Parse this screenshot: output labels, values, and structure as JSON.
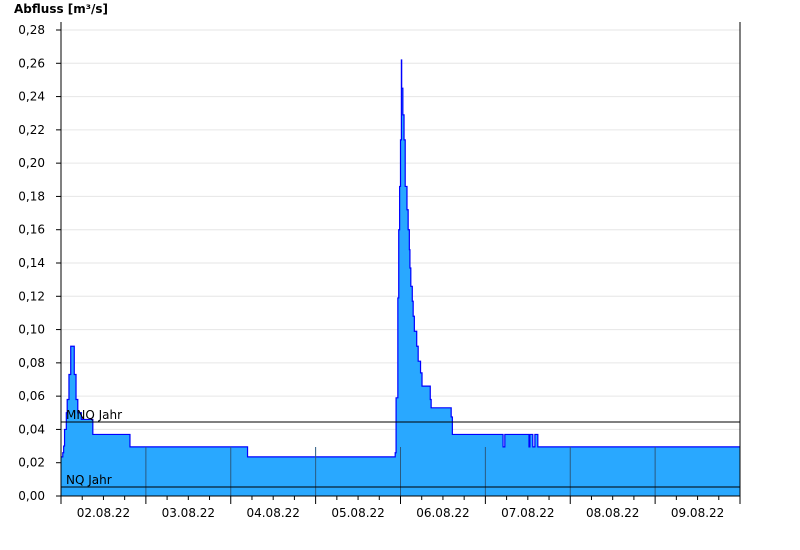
{
  "chart_data": {
    "type": "area",
    "ylabel": "Abfluss [m³/s]",
    "ylim": [
      0,
      0.28
    ],
    "yticks": [
      "0,00",
      "0,02",
      "0,04",
      "0,06",
      "0,08",
      "0,10",
      "0,12",
      "0,14",
      "0,16",
      "0,18",
      "0,20",
      "0,22",
      "0,24",
      "0,26",
      "0,28"
    ],
    "xlim": [
      "02.08.22 00:00",
      "10.08.22 00:00"
    ],
    "xtick_labels": [
      "02.08.22",
      "03.08.22",
      "04.08.22",
      "05.08.22",
      "06.08.22",
      "07.08.22",
      "08.08.22",
      "09.08.22"
    ],
    "grid": true,
    "colors": {
      "fill": "#29a8ff",
      "line": "#0000ff",
      "grid": "#e6e6e6",
      "day_line": "#2a5a80"
    },
    "series": [
      {
        "step": true,
        "points": [
          [
            "02.08.22 00:00",
            0.0235
          ],
          [
            "02.08.22 00:30",
            0.026
          ],
          [
            "02.08.22 00:45",
            0.03
          ],
          [
            "02.08.22 01:00",
            0.04
          ],
          [
            "02.08.22 01:30",
            0.05
          ],
          [
            "02.08.22 01:45",
            0.058
          ],
          [
            "02.08.22 02:15",
            0.073
          ],
          [
            "02.08.22 02:45",
            0.09
          ],
          [
            "02.08.22 03:45",
            0.073
          ],
          [
            "02.08.22 04:15",
            0.058
          ],
          [
            "02.08.22 04:45",
            0.05
          ],
          [
            "02.08.22 05:45",
            0.046
          ],
          [
            "02.08.22 09:00",
            0.037
          ],
          [
            "02.08.22 19:30",
            0.0295
          ],
          [
            "04.08.22 04:45",
            0.0235
          ],
          [
            "05.08.22 22:30",
            0.026
          ],
          [
            "05.08.22 22:45",
            0.059
          ],
          [
            "05.08.22 23:15",
            0.119
          ],
          [
            "05.08.22 23:30",
            0.16
          ],
          [
            "05.08.22 23:45",
            0.186
          ],
          [
            "06.08.22 00:00",
            0.214
          ],
          [
            "06.08.22 00:15",
            0.262
          ],
          [
            "06.08.22 00:20",
            0.245
          ],
          [
            "06.08.22 00:40",
            0.229
          ],
          [
            "06.08.22 01:00",
            0.214
          ],
          [
            "06.08.22 01:20",
            0.186
          ],
          [
            "06.08.22 01:50",
            0.172
          ],
          [
            "06.08.22 02:10",
            0.16
          ],
          [
            "06.08.22 02:30",
            0.148
          ],
          [
            "06.08.22 02:40",
            0.137
          ],
          [
            "06.08.22 02:55",
            0.126
          ],
          [
            "06.08.22 03:20",
            0.117
          ],
          [
            "06.08.22 03:35",
            0.108
          ],
          [
            "06.08.22 03:55",
            0.099
          ],
          [
            "06.08.22 04:35",
            0.09
          ],
          [
            "06.08.22 05:00",
            0.081
          ],
          [
            "06.08.22 05:40",
            0.074
          ],
          [
            "06.08.22 06:05",
            0.066
          ],
          [
            "06.08.22 08:25",
            0.058
          ],
          [
            "06.08.22 08:40",
            0.053
          ],
          [
            "06.08.22 14:20",
            0.0475
          ],
          [
            "06.08.22 14:40",
            0.037
          ],
          [
            "07.08.22 05:00",
            0.0295
          ],
          [
            "07.08.22 05:30",
            0.037
          ],
          [
            "07.08.22 12:20",
            0.0295
          ],
          [
            "07.08.22 12:35",
            0.037
          ],
          [
            "07.08.22 13:25",
            0.0295
          ],
          [
            "07.08.22 14:00",
            0.037
          ],
          [
            "07.08.22 14:50",
            0.0295
          ],
          [
            "10.08.22 00:00",
            0.0295
          ]
        ]
      }
    ],
    "reference_lines": [
      {
        "label": "MNQ Jahr",
        "value": 0.0445
      },
      {
        "label": "NQ Jahr",
        "value": 0.0054
      }
    ]
  }
}
